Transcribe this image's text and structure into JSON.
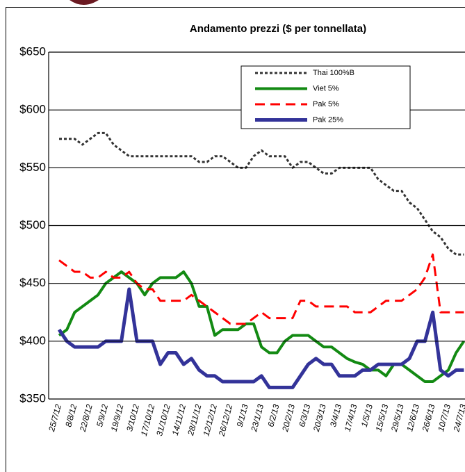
{
  "chart_data": {
    "type": "line",
    "title": "Andamento prezzi ($ per tonnellata)",
    "categories": [
      "25/7/12",
      null,
      "8/8/12",
      null,
      "22/8/12",
      null,
      "5/9/12",
      null,
      "19/9/12",
      null,
      "3/10/12",
      null,
      "17/10/12",
      null,
      "31/10/12",
      null,
      "14/11/12",
      null,
      "28/11/12",
      null,
      "12/12/12",
      null,
      "26/12/12",
      null,
      "9/1/13",
      null,
      "23/1/13",
      null,
      "6/2/13",
      null,
      "20/2/13",
      null,
      "6/3/13",
      null,
      "20/3/13",
      null,
      "3/4/13",
      null,
      "17/4/13",
      null,
      "1/5/13",
      null,
      "15/5/13",
      null,
      "29/5/13",
      null,
      "12/6/13",
      null,
      "26/6/13",
      null,
      "10/7/13",
      null,
      "24/7/13"
    ],
    "series": [
      {
        "name": "Thai 100%B",
        "color": "#333333",
        "dash": "dotted",
        "values": [
          575,
          575,
          575,
          570,
          575,
          580,
          580,
          570,
          565,
          560,
          560,
          560,
          560,
          560,
          560,
          560,
          560,
          560,
          555,
          555,
          560,
          560,
          555,
          550,
          550,
          560,
          565,
          560,
          560,
          560,
          550,
          555,
          555,
          550,
          545,
          545,
          550,
          550,
          550,
          550,
          550,
          540,
          535,
          530,
          530,
          520,
          515,
          505,
          495,
          490,
          480,
          475,
          475
        ]
      },
      {
        "name": "Viet 5%",
        "color": "#138a13",
        "dash": "solid",
        "values": [
          405,
          410,
          425,
          430,
          435,
          440,
          450,
          455,
          460,
          455,
          450,
          440,
          450,
          455,
          455,
          455,
          460,
          450,
          430,
          430,
          405,
          410,
          410,
          410,
          415,
          415,
          395,
          390,
          390,
          400,
          405,
          405,
          405,
          400,
          395,
          395,
          390,
          385,
          382,
          380,
          375,
          375,
          370,
          380,
          380,
          375,
          370,
          365,
          365,
          370,
          375,
          390,
          400
        ]
      },
      {
        "name": "Pak 5%",
        "color": "#ff0000",
        "dash": "dashed",
        "values": [
          470,
          465,
          460,
          460,
          455,
          455,
          460,
          455,
          455,
          460,
          450,
          445,
          445,
          435,
          435,
          435,
          435,
          440,
          435,
          430,
          425,
          420,
          415,
          415,
          415,
          420,
          425,
          420,
          420,
          420,
          420,
          435,
          435,
          430,
          430,
          430,
          430,
          430,
          425,
          425,
          425,
          430,
          435,
          435,
          435,
          440,
          445,
          455,
          475,
          425,
          425,
          425,
          425
        ]
      },
      {
        "name": "Pak 25%",
        "color": "#333399",
        "dash": "solid",
        "values": [
          410,
          400,
          395,
          395,
          395,
          395,
          400,
          400,
          400,
          445,
          400,
          400,
          400,
          380,
          390,
          390,
          380,
          385,
          375,
          370,
          370,
          365,
          365,
          365,
          365,
          365,
          370,
          360,
          360,
          360,
          360,
          370,
          380,
          385,
          380,
          380,
          370,
          370,
          370,
          375,
          375,
          380,
          380,
          380,
          380,
          385,
          400,
          400,
          425,
          375,
          370,
          375,
          375
        ]
      }
    ],
    "ylim": [
      350,
      650
    ],
    "yticks": [
      {
        "value": 350,
        "label": "$350"
      },
      {
        "value": 400,
        "label": "$400"
      },
      {
        "value": 450,
        "label": "$450"
      },
      {
        "value": 500,
        "label": "$500"
      },
      {
        "value": 550,
        "label": "$550"
      },
      {
        "value": 600,
        "label": "$600"
      },
      {
        "value": 650,
        "label": "$650"
      }
    ],
    "grid": true,
    "legend": "top right"
  }
}
